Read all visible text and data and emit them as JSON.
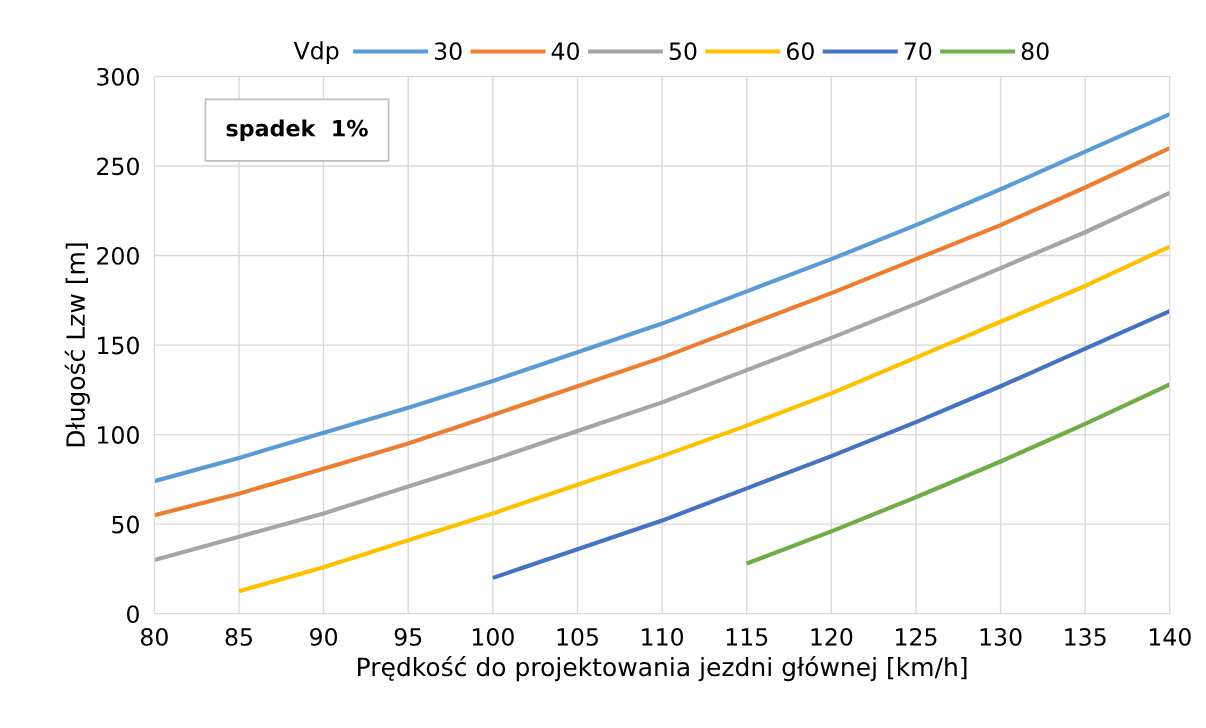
{
  "chart_data": {
    "type": "line",
    "xlabel": "Prędkość do projektowania jezdni głównej [km/h]",
    "ylabel": "Długość Lzw [m]",
    "legend_title": "Vdp",
    "x": [
      80,
      85,
      90,
      95,
      100,
      105,
      110,
      115,
      120,
      125,
      130,
      135,
      140
    ],
    "series": [
      {
        "name": "30",
        "color": "#5b9bd5",
        "values": [
          74,
          87,
          101,
          115,
          130,
          146,
          162,
          180,
          198,
          217,
          237,
          258,
          279
        ]
      },
      {
        "name": "40",
        "color": "#ed7d31",
        "values": [
          55,
          67,
          81,
          95,
          111,
          127,
          143,
          161,
          179,
          198,
          217,
          238,
          260
        ]
      },
      {
        "name": "50",
        "color": "#a5a5a5",
        "values": [
          30,
          43,
          56,
          71,
          86,
          102,
          118,
          136,
          154,
          173,
          193,
          213,
          235
        ]
      },
      {
        "name": "60",
        "color": "#ffc000",
        "values": [
          null,
          12.5,
          26,
          41,
          56,
          72,
          88,
          105,
          123,
          143,
          163,
          183,
          205
        ]
      },
      {
        "name": "70",
        "color": "#4472c4",
        "values": [
          null,
          null,
          null,
          null,
          20,
          36,
          52,
          70,
          88,
          107,
          127,
          148,
          169
        ]
      },
      {
        "name": "80",
        "color": "#70ad47",
        "values": [
          null,
          null,
          null,
          null,
          null,
          null,
          null,
          28,
          46,
          65,
          85,
          106,
          128
        ]
      }
    ],
    "xlim": [
      80,
      140
    ],
    "xticks": [
      80,
      85,
      90,
      95,
      100,
      105,
      110,
      115,
      120,
      125,
      130,
      135,
      140
    ],
    "ylim": [
      0,
      300
    ],
    "yticks": [
      0,
      50,
      100,
      150,
      200,
      250,
      300
    ],
    "grid": true,
    "legend": "top",
    "marker": "none",
    "line_style": "solid",
    "annotations": [
      "spadek  1%"
    ]
  }
}
